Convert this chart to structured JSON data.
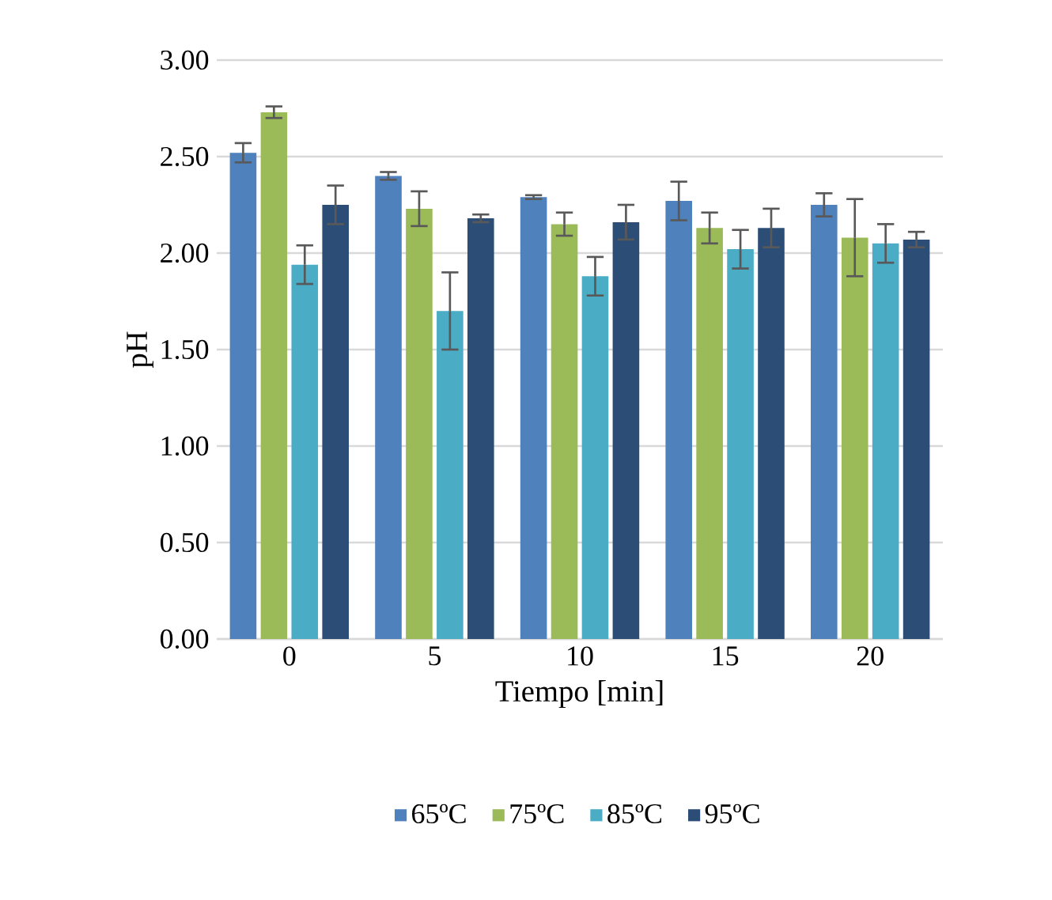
{
  "chart_data": {
    "type": "bar",
    "xlabel": "Tiempo [min]",
    "ylabel": "pH",
    "categories": [
      "0",
      "5",
      "10",
      "15",
      "20"
    ],
    "series": [
      {
        "name": "65ºC",
        "color": "#4f81bd",
        "values": [
          2.52,
          2.4,
          2.29,
          2.27,
          2.25
        ],
        "errors": [
          0.05,
          0.02,
          0.01,
          0.1,
          0.06
        ]
      },
      {
        "name": "75ºC",
        "color": "#9bbb59",
        "values": [
          2.73,
          2.23,
          2.15,
          2.13,
          2.08
        ],
        "errors": [
          0.03,
          0.09,
          0.06,
          0.08,
          0.2
        ]
      },
      {
        "name": "85ºC",
        "color": "#4bacc6",
        "values": [
          1.94,
          1.7,
          1.88,
          2.02,
          2.05
        ],
        "errors": [
          0.1,
          0.2,
          0.1,
          0.1,
          0.1
        ]
      },
      {
        "name": "95ºC",
        "color": "#2c4d75",
        "values": [
          2.25,
          2.18,
          2.16,
          2.13,
          2.07
        ],
        "errors": [
          0.1,
          0.02,
          0.09,
          0.1,
          0.04
        ]
      }
    ],
    "ylim": [
      0,
      3
    ],
    "yticks": [
      {
        "value": 0,
        "label": "0.00"
      },
      {
        "value": 0.5,
        "label": "0.50"
      },
      {
        "value": 1,
        "label": "1.00"
      },
      {
        "value": 1.5,
        "label": "1.50"
      },
      {
        "value": 2,
        "label": "2.00"
      },
      {
        "value": 2.5,
        "label": "2.50"
      },
      {
        "value": 3,
        "label": "3.00"
      }
    ],
    "grid": "y",
    "legend": "bottom"
  }
}
